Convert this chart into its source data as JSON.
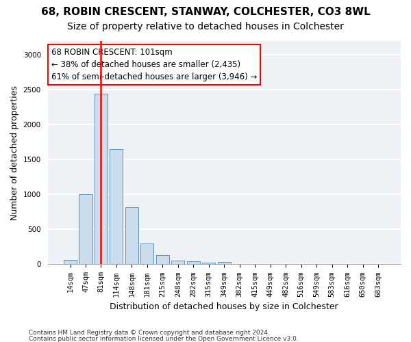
{
  "title1": "68, ROBIN CRESCENT, STANWAY, COLCHESTER, CO3 8WL",
  "title2": "Size of property relative to detached houses in Colchester",
  "xlabel": "Distribution of detached houses by size in Colchester",
  "ylabel": "Number of detached properties",
  "footer1": "Contains HM Land Registry data © Crown copyright and database right 2024.",
  "footer2": "Contains public sector information licensed under the Open Government Licence v3.0.",
  "categories": [
    "14sqm",
    "47sqm",
    "81sqm",
    "114sqm",
    "148sqm",
    "181sqm",
    "215sqm",
    "248sqm",
    "282sqm",
    "315sqm",
    "349sqm",
    "382sqm",
    "415sqm",
    "449sqm",
    "482sqm",
    "516sqm",
    "549sqm",
    "583sqm",
    "616sqm",
    "650sqm",
    "683sqm"
  ],
  "values": [
    60,
    1000,
    2450,
    1650,
    820,
    300,
    130,
    50,
    40,
    25,
    30,
    0,
    0,
    0,
    0,
    0,
    0,
    0,
    0,
    0,
    0
  ],
  "bar_color": "#ccdded",
  "bar_edge_color": "#5590bb",
  "property_bar_index": 2,
  "property_line_color": "red",
  "annotation_text": "68 ROBIN CRESCENT: 101sqm\n← 38% of detached houses are smaller (2,435)\n61% of semi-detached houses are larger (3,946) →",
  "annotation_box_facecolor": "white",
  "annotation_box_edgecolor": "red",
  "ylim_max": 3200,
  "yticks": [
    0,
    500,
    1000,
    1500,
    2000,
    2500,
    3000
  ],
  "bg_color": "#eef2f7",
  "grid_color": "white",
  "title1_fontsize": 11,
  "title2_fontsize": 10,
  "xlabel_fontsize": 9,
  "ylabel_fontsize": 9,
  "tick_fontsize": 7.5,
  "annotation_fontsize": 8.5,
  "footer_fontsize": 6.5
}
